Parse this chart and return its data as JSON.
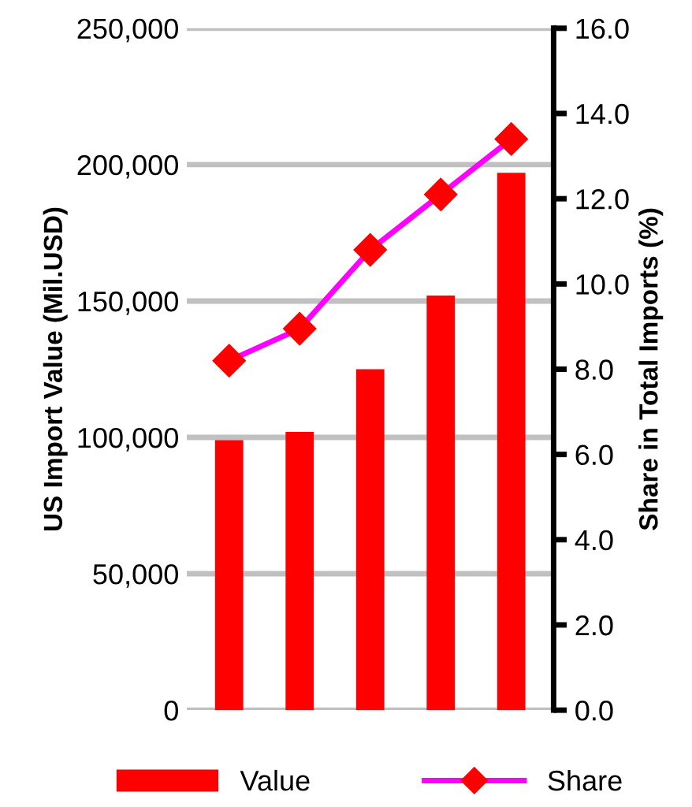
{
  "chart_data": {
    "type": "bar",
    "categories": [
      null,
      null,
      null,
      null,
      null
    ],
    "ylabel": "US Import Value (Mil.USD)",
    "y2label": "Share in Total Imports (%)",
    "series": [
      {
        "name": "Value",
        "color": "#ff0000",
        "values": [
          99000,
          102000,
          125000,
          152000,
          197000
        ]
      },
      {
        "name": "Share",
        "type": "line",
        "axis": "y2",
        "color": "#ff00ff",
        "marker": "diamond",
        "values": [
          8.2,
          8.95,
          10.8,
          12.1,
          13.4
        ]
      }
    ],
    "ylim": [
      0,
      250000
    ],
    "yticks": [
      {
        "value": 0,
        "label": "0"
      },
      {
        "value": 50000,
        "label": "50,000"
      },
      {
        "value": 100000,
        "label": "100,000"
      },
      {
        "value": 150000,
        "label": "150,000"
      },
      {
        "value": 200000,
        "label": "200,000"
      },
      {
        "value": 250000,
        "label": "250,000"
      }
    ],
    "y2lim": [
      0,
      16
    ],
    "y2ticks": [
      {
        "value": 0,
        "label": "0.0"
      },
      {
        "value": 2,
        "label": "2.0"
      },
      {
        "value": 4,
        "label": "4.0"
      },
      {
        "value": 6,
        "label": "6.0"
      },
      {
        "value": 8,
        "label": "8.0"
      },
      {
        "value": 10,
        "label": "10.0"
      },
      {
        "value": 12,
        "label": "12.0"
      },
      {
        "value": 14,
        "label": "14.0"
      },
      {
        "value": 16,
        "label": "16.0"
      }
    ],
    "grid": "y",
    "legend": "bottom"
  }
}
